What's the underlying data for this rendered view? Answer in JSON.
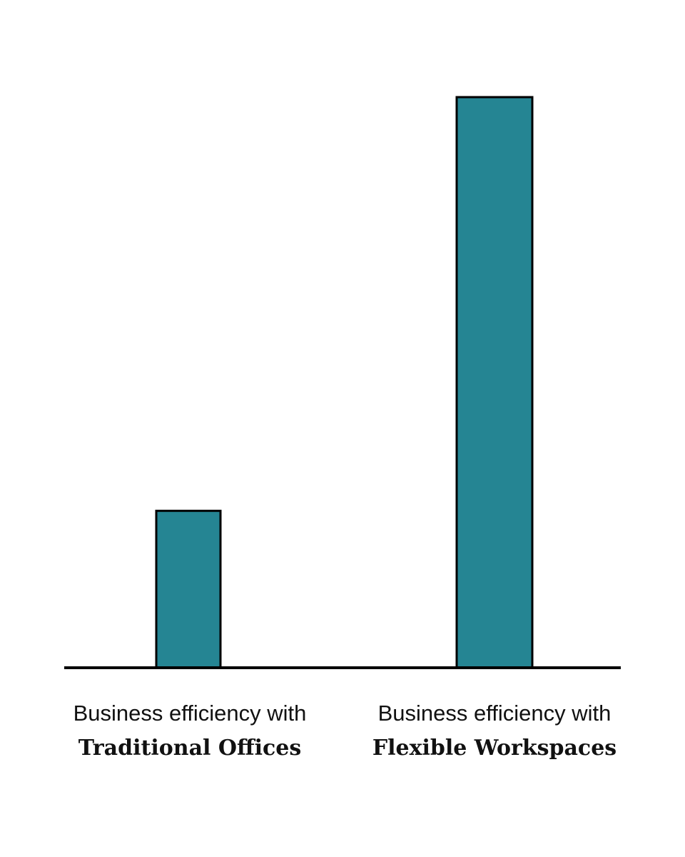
{
  "chart_data": {
    "type": "bar",
    "categories": [
      {
        "line1": "Business efficiency with",
        "line2": "Traditional Offices"
      },
      {
        "line1": "Business efficiency with",
        "line2": "Flexible Workspaces"
      }
    ],
    "values": [
      27.5,
      100
    ],
    "ylim": [
      0,
      100
    ],
    "bar_color": "#258593",
    "bar_stroke": "#000000",
    "axis_color": "#000000",
    "grid": false,
    "title": "",
    "xlabel": "",
    "ylabel": ""
  }
}
